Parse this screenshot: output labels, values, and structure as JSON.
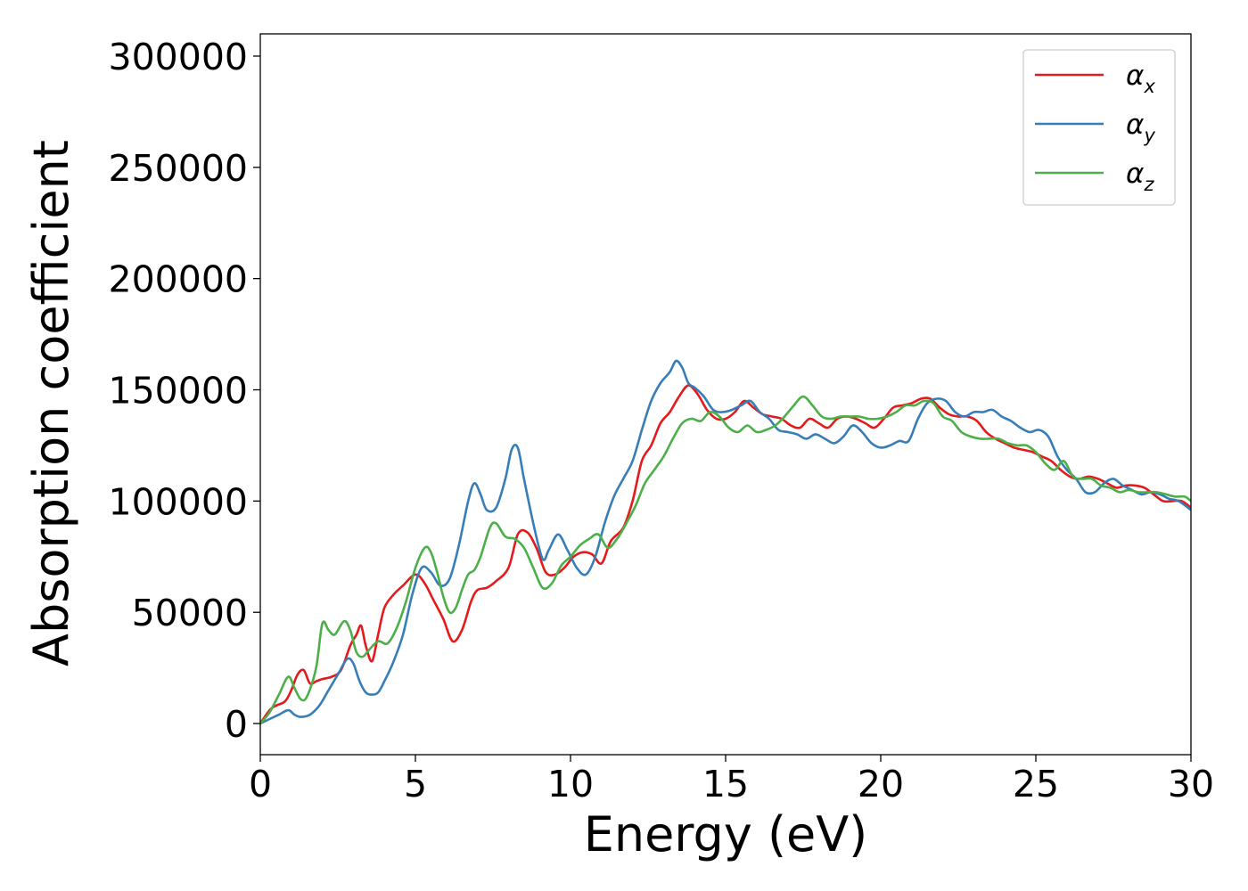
{
  "chart_data": {
    "type": "line",
    "title": "",
    "xlabel": "Energy (eV)",
    "ylabel": "Absorption coefficient",
    "xlim": [
      0,
      30
    ],
    "ylim": [
      -14000,
      310000
    ],
    "xticks": [
      0,
      5,
      10,
      15,
      20,
      25,
      30
    ],
    "yticks": [
      0,
      50000,
      100000,
      150000,
      200000,
      250000,
      300000
    ],
    "xtick_labels": [
      "0",
      "5",
      "10",
      "15",
      "20",
      "25",
      "30"
    ],
    "ytick_labels": [
      "0",
      "50000",
      "100000",
      "150000",
      "200000",
      "250000",
      "300000"
    ],
    "grid": false,
    "legend_position": "top-right",
    "series": [
      {
        "name": "α_x",
        "symbol": "α",
        "subscript": "x",
        "color": "#e41a1c",
        "x": [
          0,
          0.3,
          0.5,
          0.8,
          1.0,
          1.2,
          1.4,
          1.6,
          1.8,
          2.0,
          2.3,
          2.6,
          2.9,
          3.1,
          3.25,
          3.4,
          3.6,
          3.8,
          4.0,
          4.3,
          4.6,
          5.0,
          5.3,
          5.6,
          5.9,
          6.2,
          6.5,
          6.8,
          7.0,
          7.3,
          7.6,
          8.0,
          8.3,
          8.6,
          8.9,
          9.2,
          9.5,
          9.8,
          10.1,
          10.4,
          10.7,
          11.0,
          11.3,
          11.7,
          12.0,
          12.3,
          12.6,
          12.9,
          13.2,
          13.5,
          13.8,
          14.1,
          14.4,
          14.7,
          15.0,
          15.3,
          15.6,
          15.9,
          16.2,
          16.5,
          16.8,
          17.1,
          17.4,
          17.7,
          18.0,
          18.3,
          18.6,
          18.9,
          19.2,
          19.5,
          19.8,
          20.1,
          20.4,
          20.7,
          21.0,
          21.3,
          21.6,
          21.9,
          22.2,
          22.5,
          22.8,
          23.1,
          23.4,
          23.7,
          24.0,
          24.3,
          24.6,
          24.9,
          25.2,
          25.5,
          25.8,
          26.1,
          26.4,
          26.7,
          27.0,
          27.3,
          27.6,
          27.9,
          28.2,
          28.5,
          28.8,
          29.1,
          29.4,
          29.7,
          30.0
        ],
        "y": [
          0,
          6000,
          8000,
          10000,
          15000,
          22000,
          24000,
          18000,
          19000,
          20000,
          21000,
          24000,
          35000,
          40000,
          44000,
          35000,
          28000,
          40000,
          52000,
          58000,
          62000,
          67000,
          63000,
          55000,
          47000,
          37000,
          42000,
          55000,
          60000,
          61000,
          64000,
          70000,
          85000,
          86000,
          79000,
          68000,
          67000,
          70000,
          75000,
          77000,
          76000,
          72000,
          82000,
          88000,
          100000,
          118000,
          125000,
          135000,
          140000,
          147000,
          152000,
          148000,
          141000,
          137000,
          137000,
          140000,
          145000,
          142000,
          139000,
          138000,
          137000,
          134000,
          133000,
          137000,
          135000,
          133000,
          137000,
          138000,
          137000,
          135000,
          133000,
          137000,
          142000,
          143000,
          144000,
          146000,
          146000,
          142000,
          139000,
          138000,
          138000,
          136000,
          131000,
          128000,
          126000,
          124000,
          123000,
          122000,
          120000,
          118000,
          114000,
          111000,
          110000,
          111000,
          110000,
          108000,
          106000,
          107000,
          107000,
          106000,
          103000,
          100000,
          100000,
          100000,
          97000
        ]
      },
      {
        "name": "α_y",
        "symbol": "α",
        "subscript": "y",
        "color": "#377eb8",
        "x": [
          0,
          0.3,
          0.6,
          0.9,
          1.1,
          1.3,
          1.6,
          1.9,
          2.2,
          2.5,
          2.8,
          3.0,
          3.2,
          3.4,
          3.6,
          3.8,
          4.0,
          4.3,
          4.6,
          4.9,
          5.2,
          5.5,
          5.8,
          6.1,
          6.4,
          6.7,
          6.9,
          7.1,
          7.3,
          7.6,
          7.9,
          8.1,
          8.3,
          8.5,
          8.8,
          9.1,
          9.3,
          9.6,
          9.9,
          10.2,
          10.5,
          10.8,
          11.1,
          11.4,
          11.7,
          12.0,
          12.3,
          12.6,
          12.9,
          13.2,
          13.4,
          13.6,
          13.8,
          14.0,
          14.3,
          14.6,
          14.9,
          15.2,
          15.5,
          15.8,
          16.1,
          16.4,
          16.7,
          17.0,
          17.3,
          17.6,
          17.9,
          18.2,
          18.5,
          18.8,
          19.1,
          19.4,
          19.7,
          20.0,
          20.3,
          20.6,
          20.9,
          21.2,
          21.5,
          21.8,
          22.1,
          22.4,
          22.7,
          23.0,
          23.3,
          23.6,
          23.9,
          24.2,
          24.5,
          24.8,
          25.1,
          25.4,
          25.7,
          26.0,
          26.3,
          26.6,
          26.9,
          27.2,
          27.5,
          27.8,
          28.1,
          28.4,
          28.7,
          29.0,
          29.3,
          29.6,
          30.0
        ],
        "y": [
          0,
          2000,
          4000,
          6000,
          4000,
          3000,
          4000,
          8000,
          15000,
          22000,
          29000,
          27000,
          19000,
          14000,
          13000,
          14000,
          19000,
          28000,
          40000,
          58000,
          70000,
          68000,
          62000,
          65000,
          80000,
          100000,
          108000,
          103000,
          96000,
          97000,
          110000,
          123000,
          124000,
          110000,
          90000,
          74000,
          78000,
          85000,
          78000,
          70000,
          67000,
          75000,
          90000,
          102000,
          110000,
          118000,
          132000,
          145000,
          153000,
          158000,
          163000,
          160000,
          153000,
          151000,
          147000,
          141000,
          140000,
          141000,
          143000,
          145000,
          140000,
          137000,
          132000,
          131000,
          130000,
          128000,
          130000,
          128000,
          126000,
          129000,
          134000,
          131000,
          126000,
          124000,
          125000,
          127000,
          127000,
          137000,
          144000,
          146000,
          145000,
          140000,
          138000,
          140000,
          140000,
          141000,
          138000,
          136000,
          133000,
          131000,
          132000,
          129000,
          120000,
          114000,
          110000,
          104000,
          104000,
          108000,
          110000,
          107000,
          105000,
          103000,
          104000,
          103000,
          101000,
          100000,
          96000
        ]
      },
      {
        "name": "α_z",
        "symbol": "α",
        "subscript": "z",
        "color": "#4daf4a",
        "x": [
          0,
          0.3,
          0.6,
          0.9,
          1.1,
          1.3,
          1.5,
          1.8,
          2.0,
          2.2,
          2.4,
          2.7,
          2.9,
          3.1,
          3.3,
          3.5,
          3.8,
          4.1,
          4.4,
          4.7,
          5.0,
          5.3,
          5.5,
          5.7,
          5.9,
          6.1,
          6.3,
          6.5,
          6.7,
          6.9,
          7.1,
          7.4,
          7.6,
          7.9,
          8.2,
          8.5,
          8.8,
          9.1,
          9.4,
          9.7,
          10.0,
          10.3,
          10.6,
          10.9,
          11.2,
          11.5,
          11.8,
          12.1,
          12.4,
          12.7,
          13.0,
          13.3,
          13.6,
          13.9,
          14.2,
          14.5,
          14.8,
          15.1,
          15.4,
          15.7,
          16.0,
          16.3,
          16.6,
          16.9,
          17.2,
          17.5,
          17.8,
          18.1,
          18.4,
          18.7,
          19.0,
          19.3,
          19.6,
          19.9,
          20.2,
          20.5,
          20.8,
          21.1,
          21.4,
          21.7,
          22.0,
          22.3,
          22.6,
          22.9,
          23.2,
          23.5,
          23.8,
          24.1,
          24.4,
          24.7,
          25.0,
          25.3,
          25.6,
          25.9,
          26.2,
          26.5,
          26.8,
          27.1,
          27.4,
          27.7,
          28.0,
          28.3,
          28.6,
          28.9,
          29.2,
          29.5,
          29.8,
          30.0
        ],
        "y": [
          0,
          5000,
          13000,
          21000,
          16000,
          11000,
          12000,
          25000,
          45000,
          42000,
          40000,
          46000,
          42000,
          32000,
          30000,
          33000,
          37000,
          36000,
          43000,
          55000,
          70000,
          79000,
          77000,
          68000,
          57000,
          50000,
          52000,
          60000,
          67000,
          69000,
          75000,
          88000,
          90000,
          84000,
          83000,
          79000,
          70000,
          61000,
          63000,
          71000,
          75000,
          80000,
          83000,
          85000,
          79000,
          83000,
          90000,
          98000,
          108000,
          114000,
          120000,
          128000,
          135000,
          137000,
          136000,
          140000,
          138000,
          133000,
          131000,
          134000,
          131000,
          132000,
          134000,
          138000,
          143000,
          147000,
          143000,
          138000,
          137000,
          138000,
          138000,
          138000,
          137000,
          137000,
          138000,
          140000,
          143000,
          143000,
          145000,
          144000,
          138000,
          136000,
          131000,
          129000,
          128000,
          128000,
          128000,
          126000,
          125000,
          125000,
          122000,
          117000,
          114000,
          118000,
          111000,
          110000,
          110000,
          107000,
          106000,
          104000,
          105000,
          104000,
          104000,
          104000,
          103000,
          102000,
          102000,
          100000
        ]
      }
    ]
  }
}
